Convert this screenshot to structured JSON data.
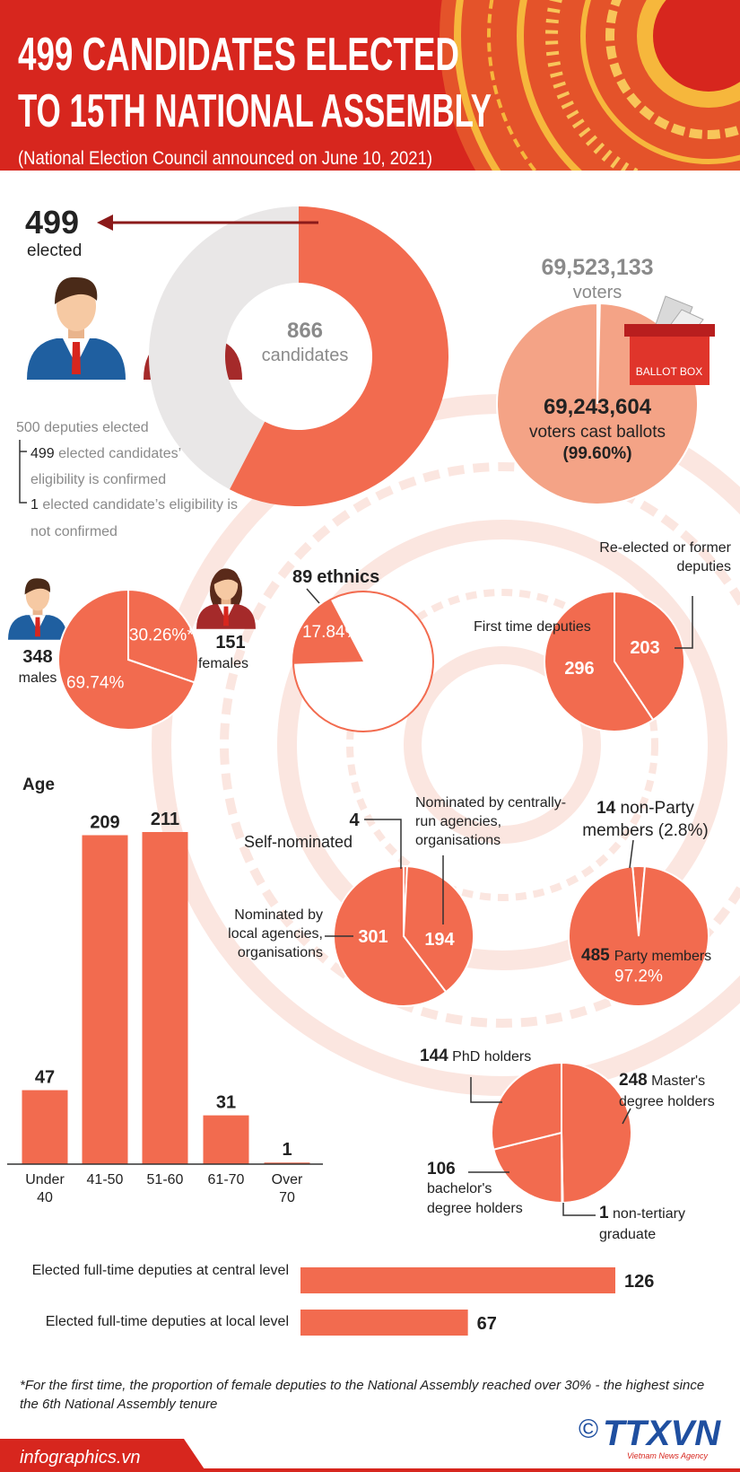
{
  "header": {
    "title_lines": [
      "499 CANDIDATES ELECTED",
      "TO 15TH NATIONAL ASSEMBLY"
    ],
    "subtitle": "(National Election Council announced on June 10, 2021)"
  },
  "chart_data": [
    {
      "type": "donut",
      "value": 499,
      "value_caption": "elected",
      "total": 866,
      "total_caption": "candidates",
      "color": "#f26b4f",
      "rest_color": "#e9e7e7"
    },
    {
      "type": "proportion",
      "total": {
        "value": 69523133,
        "label": "69,523,133"
      },
      "total_caption": "voters",
      "cast": {
        "value": 69243604,
        "label": "69,243,604"
      },
      "cast_caption": "voters cast ballots",
      "share": {
        "value": 99.6,
        "label": "(99.60%)"
      },
      "box_label": "BALLOT BOX",
      "color": "#f4a386"
    },
    {
      "type": "pie",
      "categories": [
        "females",
        "males"
      ],
      "values": [
        151,
        348
      ],
      "percents": [
        {
          "value": 30.26,
          "label": "30.26%*"
        },
        {
          "value": 69.74,
          "label": "69.74%"
        }
      ],
      "color": "#f26b4f"
    },
    {
      "type": "fraction",
      "count": 89,
      "caption": "ethnics",
      "percent": {
        "value": 17.84,
        "label": "17.84%"
      },
      "color": "#f26b4f"
    },
    {
      "type": "pie",
      "categories": [
        "Re-elected or former deputies",
        "First time deputies"
      ],
      "values": [
        203,
        296
      ],
      "color": "#f26b4f"
    },
    {
      "type": "bar",
      "title": "Age",
      "categories": [
        "Under 40",
        "41-50",
        "51-60",
        "61-70",
        "Over 70"
      ],
      "values": [
        47,
        209,
        211,
        31,
        1
      ],
      "color": "#f26b4f"
    },
    {
      "type": "pie",
      "categories": [
        "Self-nominated",
        "Nominated by centrally-run agencies, organisations",
        "Nominated by local agencies, organisations"
      ],
      "values": [
        4,
        194,
        301
      ],
      "color": "#f26b4f"
    },
    {
      "type": "pie",
      "categories": [
        "non-Party members",
        "Party members"
      ],
      "values": [
        14,
        485
      ],
      "percents": [
        {
          "value": 2.8,
          "label": "(2.8%)"
        },
        {
          "value": 97.2,
          "label": "97.2%"
        }
      ],
      "color": "#f26b4f"
    },
    {
      "type": "pie",
      "categories": [
        "Master's degree holders",
        "non-tertiary graduate",
        "bachelor's degree holders",
        "PhD holders"
      ],
      "values": [
        248,
        1,
        106,
        144
      ],
      "color": "#f26b4f"
    },
    {
      "type": "hbar",
      "categories": [
        "Elected full-time deputies at central level",
        "Elected full-time deputies at local level"
      ],
      "values": [
        126,
        67
      ],
      "color": "#f26b4f"
    }
  ],
  "notes": {
    "total": "500 deputies elected",
    "items": [
      {
        "number": "499",
        "text": "elected candidates’ eligibility is confirmed"
      },
      {
        "number": "1",
        "text": "elected candidate’s eligibility is not confirmed"
      }
    ]
  },
  "footnote": "*For the first time, the proportion of female deputies to the National Assembly reached over 30% - the highest since the 6th National Assembly tenure",
  "footer": {
    "site": "infographics.vn",
    "copyright": "©",
    "logo": "TTXVN",
    "agency": "Vietnam News Agency"
  }
}
